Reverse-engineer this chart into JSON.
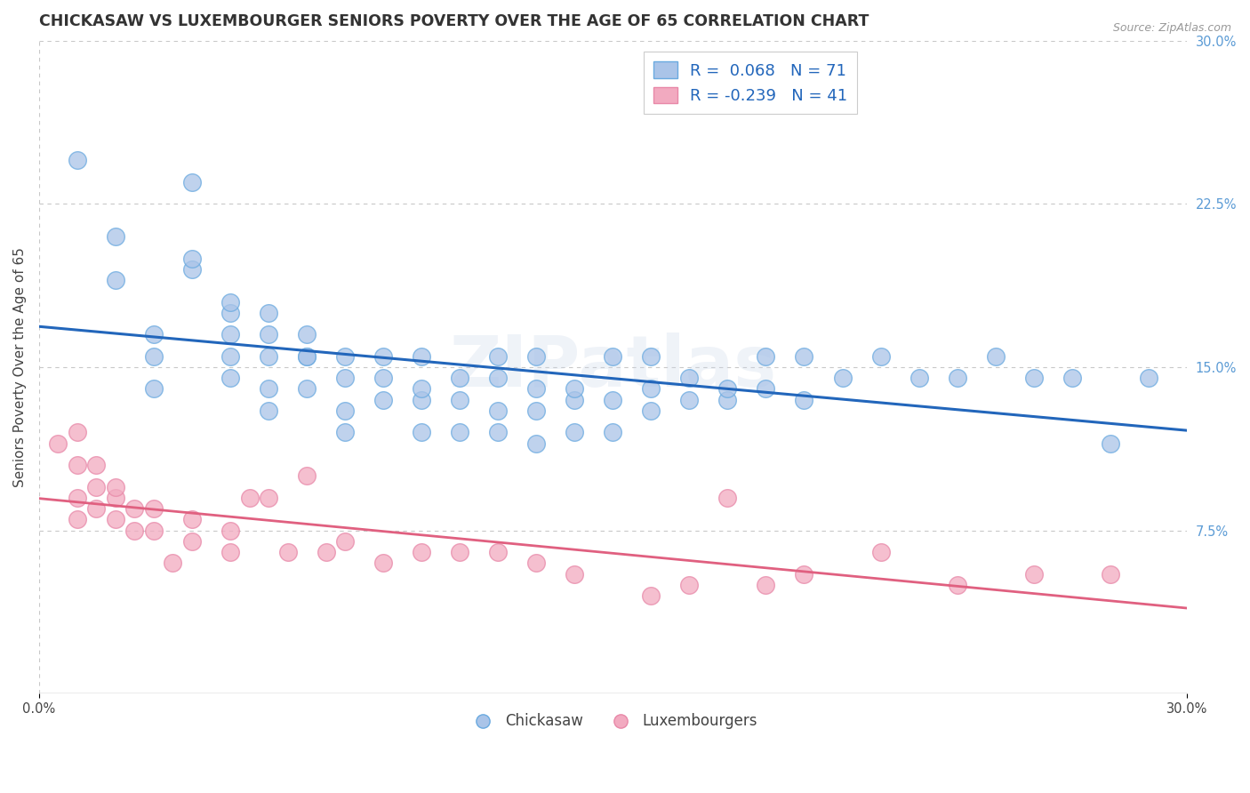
{
  "title": "CHICKASAW VS LUXEMBOURGER SENIORS POVERTY OVER THE AGE OF 65 CORRELATION CHART",
  "source": "Source: ZipAtlas.com",
  "ylabel": "Seniors Poverty Over the Age of 65",
  "xlim": [
    0.0,
    0.3
  ],
  "ylim": [
    0.0,
    0.3
  ],
  "yticks_right": [
    0.075,
    0.15,
    0.225,
    0.3
  ],
  "ytick_right_labels": [
    "7.5%",
    "15.0%",
    "22.5%",
    "30.0%"
  ],
  "chickasaw_color": "#aac4e8",
  "chickasaw_edge": "#6aaae0",
  "luxembourger_color": "#f2aac0",
  "luxembourger_edge": "#e888a8",
  "trendline_blue": "#2266bb",
  "trendline_pink": "#e06080",
  "R_chickasaw": 0.068,
  "N_chickasaw": 71,
  "R_luxembourger": -0.239,
  "N_luxembourger": 41,
  "chickasaw_x": [
    0.01,
    0.02,
    0.02,
    0.03,
    0.03,
    0.03,
    0.04,
    0.04,
    0.04,
    0.05,
    0.05,
    0.05,
    0.05,
    0.05,
    0.06,
    0.06,
    0.06,
    0.06,
    0.06,
    0.07,
    0.07,
    0.07,
    0.07,
    0.08,
    0.08,
    0.08,
    0.08,
    0.09,
    0.09,
    0.09,
    0.1,
    0.1,
    0.1,
    0.1,
    0.11,
    0.11,
    0.11,
    0.12,
    0.12,
    0.12,
    0.12,
    0.13,
    0.13,
    0.13,
    0.13,
    0.14,
    0.14,
    0.14,
    0.15,
    0.15,
    0.15,
    0.16,
    0.16,
    0.16,
    0.17,
    0.17,
    0.18,
    0.18,
    0.19,
    0.19,
    0.2,
    0.2,
    0.21,
    0.22,
    0.23,
    0.24,
    0.25,
    0.26,
    0.27,
    0.28,
    0.29
  ],
  "chickasaw_y": [
    0.245,
    0.19,
    0.21,
    0.14,
    0.155,
    0.165,
    0.195,
    0.2,
    0.235,
    0.145,
    0.155,
    0.165,
    0.175,
    0.18,
    0.13,
    0.14,
    0.155,
    0.165,
    0.175,
    0.14,
    0.155,
    0.155,
    0.165,
    0.12,
    0.13,
    0.145,
    0.155,
    0.135,
    0.145,
    0.155,
    0.12,
    0.135,
    0.14,
    0.155,
    0.12,
    0.135,
    0.145,
    0.12,
    0.13,
    0.145,
    0.155,
    0.115,
    0.13,
    0.14,
    0.155,
    0.12,
    0.135,
    0.14,
    0.12,
    0.135,
    0.155,
    0.13,
    0.14,
    0.155,
    0.135,
    0.145,
    0.135,
    0.14,
    0.14,
    0.155,
    0.135,
    0.155,
    0.145,
    0.155,
    0.145,
    0.145,
    0.155,
    0.145,
    0.145,
    0.115,
    0.145
  ],
  "luxembourger_x": [
    0.005,
    0.01,
    0.01,
    0.01,
    0.01,
    0.015,
    0.015,
    0.015,
    0.02,
    0.02,
    0.02,
    0.025,
    0.025,
    0.03,
    0.03,
    0.035,
    0.04,
    0.04,
    0.05,
    0.05,
    0.055,
    0.06,
    0.065,
    0.07,
    0.075,
    0.08,
    0.09,
    0.1,
    0.11,
    0.12,
    0.13,
    0.14,
    0.16,
    0.17,
    0.18,
    0.19,
    0.2,
    0.22,
    0.24,
    0.26,
    0.28
  ],
  "luxembourger_y": [
    0.115,
    0.08,
    0.09,
    0.105,
    0.12,
    0.085,
    0.095,
    0.105,
    0.08,
    0.09,
    0.095,
    0.075,
    0.085,
    0.075,
    0.085,
    0.06,
    0.07,
    0.08,
    0.065,
    0.075,
    0.09,
    0.09,
    0.065,
    0.1,
    0.065,
    0.07,
    0.06,
    0.065,
    0.065,
    0.065,
    0.06,
    0.055,
    0.045,
    0.05,
    0.09,
    0.05,
    0.055,
    0.065,
    0.05,
    0.055,
    0.055
  ],
  "watermark": "ZIPatlas",
  "background_color": "#ffffff",
  "grid_color": "#c8c8c8",
  "title_fontsize": 12.5,
  "axis_label_fontsize": 11,
  "tick_fontsize": 10.5
}
